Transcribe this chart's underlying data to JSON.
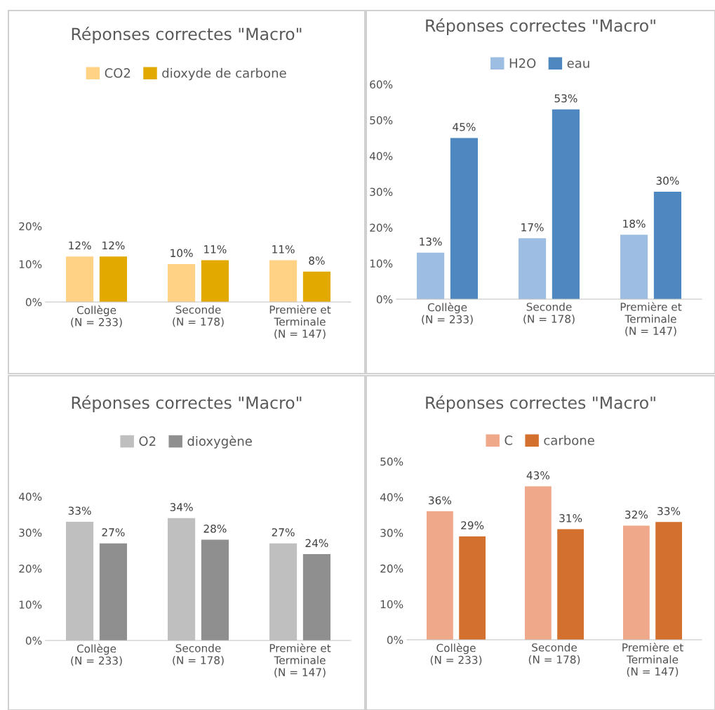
{
  "chart_data": [
    {
      "type": "bar",
      "title": "Réponses correctes \"Macro\"",
      "categories": [
        "Collège\n(N = 233)",
        "Seconde\n(N = 178)",
        "Première et\nTerminale\n(N = 147)"
      ],
      "series": [
        {
          "name": "CO2",
          "color": "#ffd285",
          "values": [
            12,
            10,
            11
          ],
          "value_labels": [
            "12%",
            "10%",
            "11%"
          ]
        },
        {
          "name": "dioxyde de carbone",
          "color": "#e2aa00",
          "values": [
            12,
            11,
            8
          ],
          "value_labels": [
            "12%",
            "11%",
            "8%"
          ]
        }
      ],
      "ylim": [
        0,
        20
      ],
      "yticks": [
        {
          "value": 0,
          "label": "0%"
        },
        {
          "value": 10,
          "label": "10%"
        },
        {
          "value": 20,
          "label": "20%"
        }
      ],
      "grid": false,
      "legend": "top"
    },
    {
      "type": "bar",
      "title": "Réponses correctes \"Macro\"",
      "categories": [
        "Collège\n(N = 233)",
        "Seconde\n(N = 178)",
        "Première et\nTerminale\n(N = 147)"
      ],
      "series": [
        {
          "name": "H2O",
          "color": "#9dbde3",
          "values": [
            13,
            17,
            18
          ],
          "value_labels": [
            "13%",
            "17%",
            "18%"
          ]
        },
        {
          "name": "eau",
          "color": "#4f88c0",
          "values": [
            45,
            53,
            30
          ],
          "value_labels": [
            "45%",
            "53%",
            "30%"
          ]
        }
      ],
      "ylim": [
        0,
        60
      ],
      "yticks": [
        {
          "value": 0,
          "label": "0%"
        },
        {
          "value": 10,
          "label": "10%"
        },
        {
          "value": 20,
          "label": "20%"
        },
        {
          "value": 30,
          "label": "30%"
        },
        {
          "value": 40,
          "label": "40%"
        },
        {
          "value": 50,
          "label": "50%"
        },
        {
          "value": 60,
          "label": "60%"
        }
      ],
      "grid": false,
      "legend": "top"
    },
    {
      "type": "bar",
      "title": "Réponses correctes \"Macro\"",
      "categories": [
        "Collège\n(N = 233)",
        "Seconde\n(N = 178)",
        "Première et\nTerminale\n(N = 147)"
      ],
      "series": [
        {
          "name": "O2",
          "color": "#bfbfbf",
          "values": [
            33,
            34,
            27
          ],
          "value_labels": [
            "33%",
            "34%",
            "27%"
          ]
        },
        {
          "name": "dioxygène",
          "color": "#8f8f8f",
          "values": [
            27,
            28,
            24
          ],
          "value_labels": [
            "27%",
            "28%",
            "24%"
          ]
        }
      ],
      "ylim": [
        0,
        40
      ],
      "yticks": [
        {
          "value": 0,
          "label": "0%"
        },
        {
          "value": 10,
          "label": "10%"
        },
        {
          "value": 20,
          "label": "20%"
        },
        {
          "value": 30,
          "label": "30%"
        },
        {
          "value": 40,
          "label": "40%"
        }
      ],
      "grid": false,
      "legend": "top"
    },
    {
      "type": "bar",
      "title": "Réponses correctes \"Macro\"",
      "categories": [
        "Collège\n(N = 233)",
        "Seconde\n(N = 178)",
        "Première et\nTerminale\n(N = 147)"
      ],
      "series": [
        {
          "name": "C",
          "color": "#f0a88a",
          "values": [
            36,
            43,
            32
          ],
          "value_labels": [
            "36%",
            "43%",
            "32%"
          ]
        },
        {
          "name": "carbone",
          "color": "#d4702e",
          "values": [
            29,
            31,
            33
          ],
          "value_labels": [
            "29%",
            "31%",
            "33%"
          ]
        }
      ],
      "ylim": [
        0,
        50
      ],
      "yticks": [
        {
          "value": 0,
          "label": "0%"
        },
        {
          "value": 10,
          "label": "10%"
        },
        {
          "value": 20,
          "label": "20%"
        },
        {
          "value": 30,
          "label": "30%"
        },
        {
          "value": 40,
          "label": "40%"
        },
        {
          "value": 50,
          "label": "50%"
        }
      ],
      "grid": false,
      "legend": "top"
    }
  ]
}
